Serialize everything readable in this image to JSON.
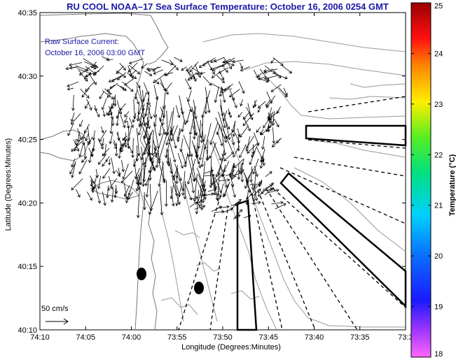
{
  "title": "RU COOL  NOAA–17  Sea Surface Temperature:  October 16, 2006 0254 GMT",
  "current_label": "Raw Surface Current:",
  "current_time": "October 16, 2006 03:00 GMT",
  "scale_label": "50 cm/s",
  "axes": {
    "xlabel": "Longitude (Degrees:Minutes)",
    "ylabel": "Latitude (Degrees:Minutes)",
    "x_ticks": [
      "74:10",
      "74:05",
      "74:00",
      "73:55",
      "73:50",
      "73:45",
      "73:40",
      "73:35",
      "73:3"
    ],
    "y_ticks": [
      "40:35",
      "40:30",
      "40:25",
      "40:20",
      "40:15",
      "40:10"
    ]
  },
  "colorbar": {
    "label": "Temperature (°C)",
    "ticks": [
      "25",
      "24",
      "23",
      "22",
      "21",
      "20",
      "19",
      "18"
    ],
    "range": [
      18,
      25
    ]
  },
  "colors": {
    "title_text": "#1a1aa6",
    "coastline": "#777777",
    "bathymetry": "#999999",
    "arrows": "#000000"
  }
}
